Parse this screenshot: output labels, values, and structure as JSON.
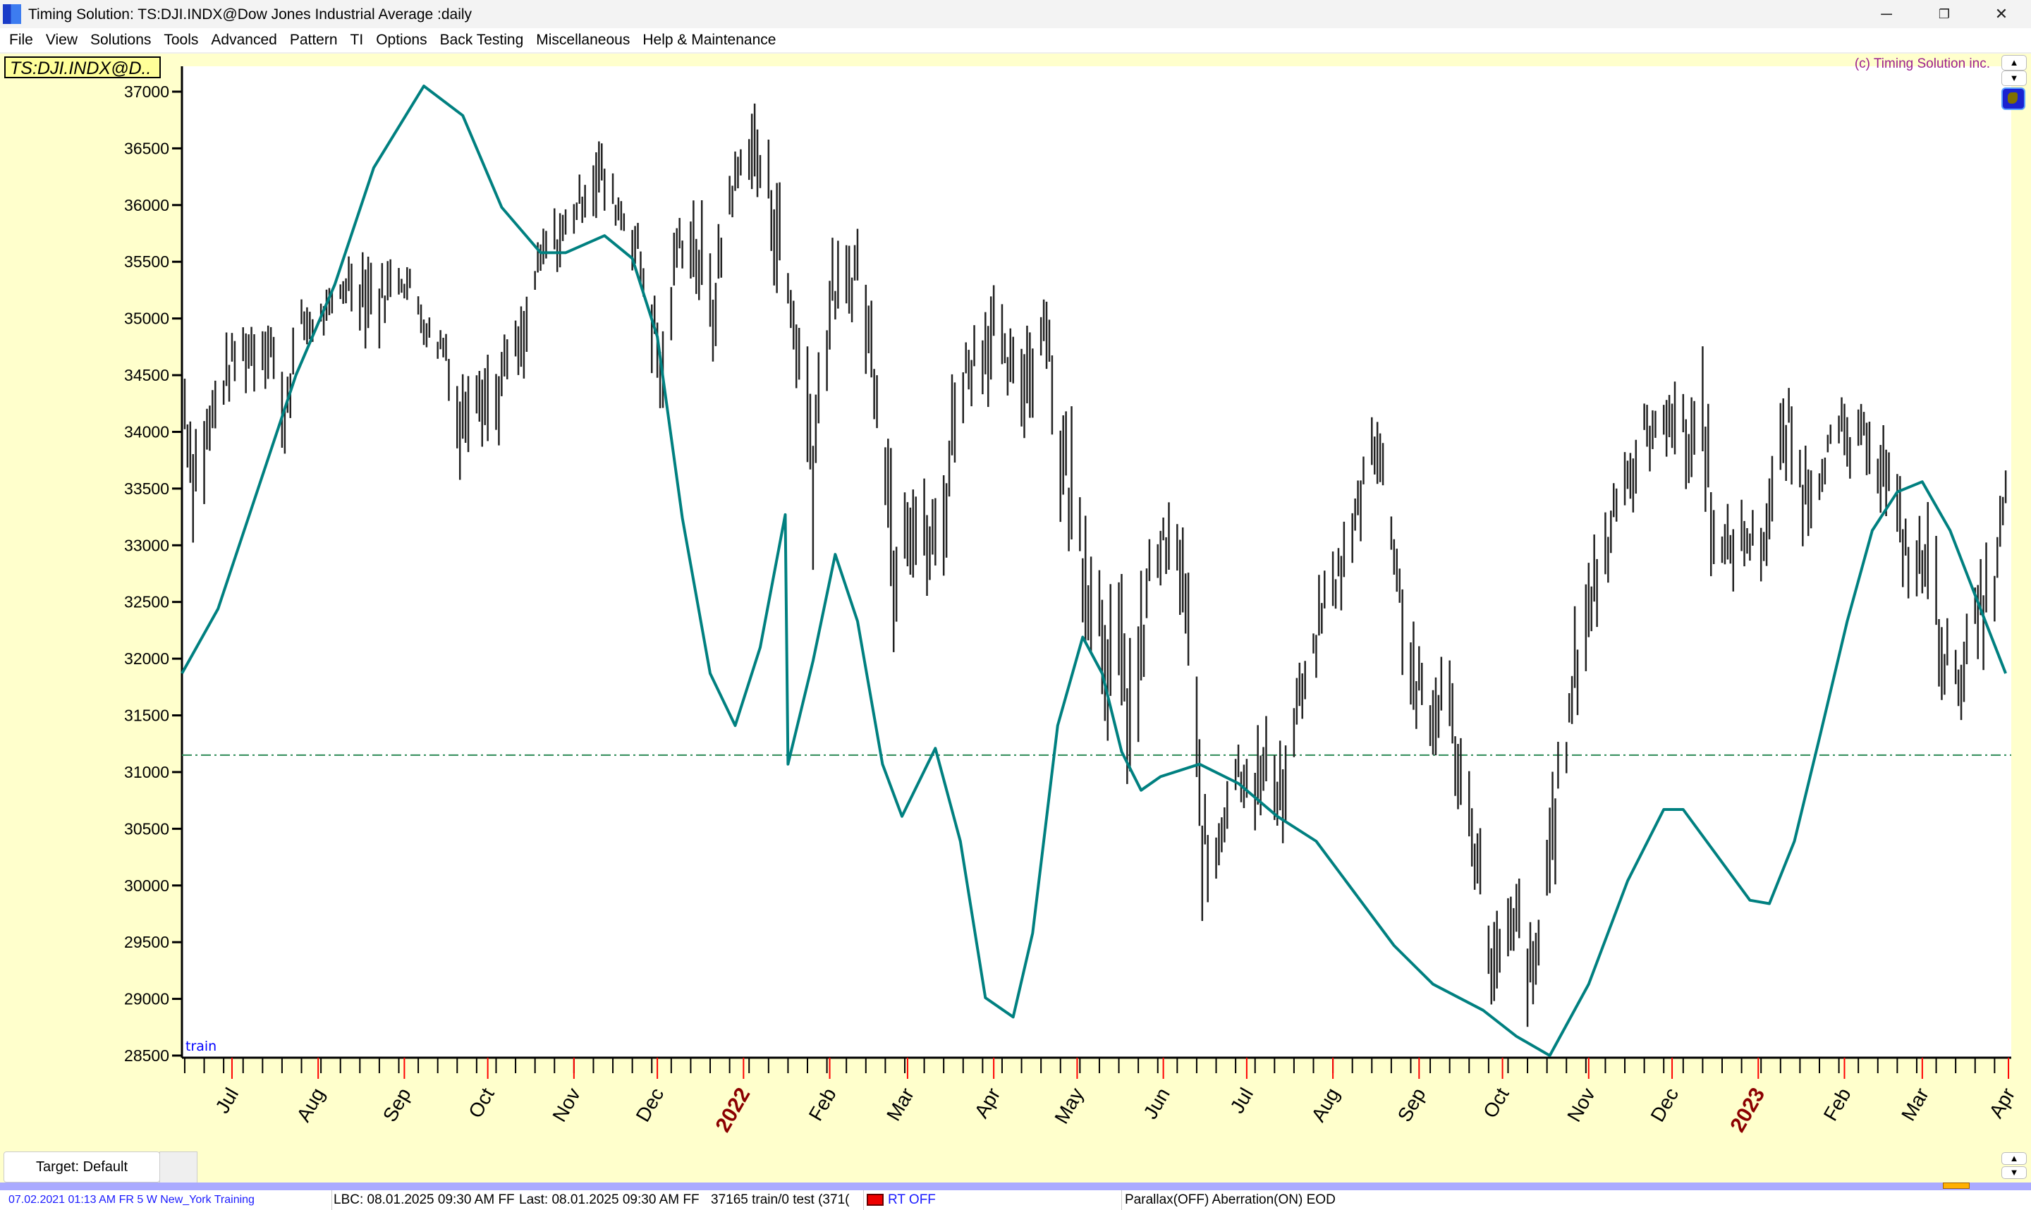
{
  "window": {
    "title": "Timing Solution:  TS:DJI.INDX@Dow Jones Industrial Average  :daily",
    "icon": "timing-solution-logo",
    "controls": {
      "minimize": "─",
      "restore": "❐",
      "close": "✕"
    }
  },
  "menu": [
    "File",
    "View",
    "Solutions",
    "Tools",
    "Advanced",
    "Pattern",
    "TI",
    "Options",
    "Back Testing",
    "Miscellaneous",
    "Help & Maintenance"
  ],
  "chart_header": {
    "symbol": "TS:DJI.INDX@D..",
    "copyright": "(c) Timing Solution inc.",
    "scroll_up": "▲",
    "scroll_down": "▼"
  },
  "chart_data": {
    "type": "bar",
    "subtype": "high-low price bars with projection line",
    "ylim": [
      28500,
      37000
    ],
    "y_ticks": [
      "28500",
      "29000",
      "29500",
      "30000",
      "30500",
      "31000",
      "31500",
      "32000",
      "32500",
      "33000",
      "33500",
      "34000",
      "34500",
      "35000",
      "35500",
      "36000",
      "36500",
      "37000"
    ],
    "xlim": [
      "2021-06-13",
      "2023-04-02"
    ],
    "x_labels": [
      {
        "date": "2021-07-01",
        "label": "Jul",
        "year": false
      },
      {
        "date": "2021-08-01",
        "label": "Aug",
        "year": false
      },
      {
        "date": "2021-09-01",
        "label": "Sep",
        "year": false
      },
      {
        "date": "2021-10-01",
        "label": "Oct",
        "year": false
      },
      {
        "date": "2021-11-01",
        "label": "Nov",
        "year": false
      },
      {
        "date": "2021-12-01",
        "label": "Dec",
        "year": false
      },
      {
        "date": "2022-01-01",
        "label": "2022",
        "year": true
      },
      {
        "date": "2022-02-01",
        "label": "Feb",
        "year": false
      },
      {
        "date": "2022-03-01",
        "label": "Mar",
        "year": false
      },
      {
        "date": "2022-04-01",
        "label": "Apr",
        "year": false
      },
      {
        "date": "2022-05-01",
        "label": "May",
        "year": false
      },
      {
        "date": "2022-06-01",
        "label": "Jun",
        "year": false
      },
      {
        "date": "2022-07-01",
        "label": "Jul",
        "year": false
      },
      {
        "date": "2022-08-01",
        "label": "Aug",
        "year": false
      },
      {
        "date": "2022-09-01",
        "label": "Sep",
        "year": false
      },
      {
        "date": "2022-10-01",
        "label": "Oct",
        "year": false
      },
      {
        "date": "2022-11-01",
        "label": "Nov",
        "year": false
      },
      {
        "date": "2022-12-01",
        "label": "Dec",
        "year": false
      },
      {
        "date": "2023-01-01",
        "label": "2023",
        "year": true
      },
      {
        "date": "2023-02-01",
        "label": "Feb",
        "year": false
      },
      {
        "date": "2023-03-01",
        "label": "Mar",
        "year": false
      },
      {
        "date": "2023-04-01",
        "label": "Apr",
        "year": false
      }
    ],
    "region_label": "train",
    "reference_line": 31150,
    "price_bars_low_high": [
      [
        "2021-06-14",
        34000,
        34500
      ],
      [
        "2021-06-17",
        33300,
        34000
      ],
      [
        "2021-06-21",
        33500,
        34200
      ],
      [
        "2021-06-27",
        34200,
        34600
      ],
      [
        "2021-07-03",
        34500,
        34900
      ],
      [
        "2021-07-10",
        34500,
        35000
      ],
      [
        "2021-07-15",
        34600,
        35000
      ],
      [
        "2021-07-19",
        33700,
        34400
      ],
      [
        "2021-07-25",
        34800,
        35100
      ],
      [
        "2021-07-31",
        34800,
        35100
      ],
      [
        "2021-08-06",
        35000,
        35200
      ],
      [
        "2021-08-12",
        35200,
        35500
      ],
      [
        "2021-08-17",
        35000,
        35600
      ],
      [
        "2021-08-23",
        34900,
        35400
      ],
      [
        "2021-08-29",
        35300,
        35500
      ],
      [
        "2021-09-04",
        35100,
        35400
      ],
      [
        "2021-09-10",
        34700,
        35000
      ],
      [
        "2021-09-16",
        34600,
        34900
      ],
      [
        "2021-09-21",
        33700,
        34300
      ],
      [
        "2021-09-26",
        34300,
        34900
      ],
      [
        "2021-10-03",
        33800,
        34500
      ],
      [
        "2021-10-08",
        34500,
        34800
      ],
      [
        "2021-10-14",
        34500,
        35000
      ],
      [
        "2021-10-18",
        35200,
        35500
      ],
      [
        "2021-10-22",
        35500,
        35800
      ],
      [
        "2021-10-27",
        35500,
        35900
      ],
      [
        "2021-11-01",
        35800,
        36100
      ],
      [
        "2021-11-06",
        36000,
        36300
      ],
      [
        "2021-11-10",
        36000,
        36580
      ],
      [
        "2021-11-15",
        35900,
        36200
      ],
      [
        "2021-11-20",
        35700,
        36000
      ],
      [
        "2021-11-24",
        35400,
        35800
      ],
      [
        "2021-11-29",
        34700,
        35300
      ],
      [
        "2021-12-03",
        34000,
        34800
      ],
      [
        "2021-12-08",
        35500,
        35800
      ],
      [
        "2021-12-13",
        35500,
        36000
      ],
      [
        "2021-12-17",
        35000,
        35800
      ],
      [
        "2021-12-21",
        34700,
        35300
      ],
      [
        "2021-12-26",
        35800,
        36200
      ],
      [
        "2021-12-31",
        36200,
        36500
      ],
      [
        "2022-01-03",
        36300,
        36900
      ],
      [
        "2022-01-08",
        36000,
        36500
      ],
      [
        "2022-01-12",
        35500,
        36400
      ],
      [
        "2022-01-17",
        35000,
        35500
      ],
      [
        "2022-01-21",
        34300,
        35000
      ],
      [
        "2022-01-26",
        33200,
        34500
      ],
      [
        "2022-01-29",
        34000,
        35000
      ],
      [
        "2022-02-02",
        35000,
        35500
      ],
      [
        "2022-02-07",
        35000,
        35500
      ],
      [
        "2022-02-11",
        35200,
        35800
      ],
      [
        "2022-02-15",
        34500,
        35200
      ],
      [
        "2022-02-20",
        33900,
        34500
      ],
      [
        "2022-02-24",
        32300,
        33500
      ],
      [
        "2022-02-28",
        33000,
        33800
      ],
      [
        "2022-03-04",
        32800,
        33500
      ],
      [
        "2022-03-09",
        32600,
        33300
      ],
      [
        "2022-03-14",
        32800,
        33600
      ],
      [
        "2022-03-18",
        33900,
        34600
      ],
      [
        "2022-03-22",
        34300,
        34800
      ],
      [
        "2022-03-27",
        34500,
        35000
      ],
      [
        "2022-04-01",
        34500,
        35300
      ],
      [
        "2022-04-05",
        34400,
        34800
      ],
      [
        "2022-04-10",
        34100,
        34700
      ],
      [
        "2022-04-14",
        34200,
        35000
      ],
      [
        "2022-04-20",
        34800,
        35300
      ],
      [
        "2022-04-24",
        33500,
        34200
      ],
      [
        "2022-04-28",
        33000,
        34100
      ],
      [
        "2022-05-03",
        32500,
        33400
      ],
      [
        "2022-05-08",
        32000,
        33000
      ],
      [
        "2022-05-13",
        31500,
        32500
      ],
      [
        "2022-05-17",
        31200,
        32400
      ],
      [
        "2022-05-22",
        30900,
        32000
      ],
      [
        "2022-05-27",
        32500,
        33000
      ],
      [
        "2022-06-01",
        32800,
        33200
      ],
      [
        "2022-06-05",
        32600,
        33200
      ],
      [
        "2022-06-08",
        32400,
        33100
      ],
      [
        "2022-06-12",
        31100,
        32000
      ],
      [
        "2022-06-15",
        30000,
        30800
      ],
      [
        "2022-06-18",
        29700,
        30400
      ],
      [
        "2022-06-22",
        30300,
        30800
      ],
      [
        "2022-06-26",
        30800,
        31300
      ],
      [
        "2022-07-01",
        30800,
        31200
      ],
      [
        "2022-07-05",
        30600,
        31200
      ],
      [
        "2022-07-10",
        30700,
        31400
      ],
      [
        "2022-07-15",
        30500,
        31100
      ],
      [
        "2022-07-19",
        31400,
        31800
      ],
      [
        "2022-07-24",
        31700,
        32000
      ],
      [
        "2022-07-28",
        32200,
        32700
      ],
      [
        "2022-08-02",
        32500,
        32900
      ],
      [
        "2022-08-07",
        32700,
        33200
      ],
      [
        "2022-08-11",
        33200,
        33700
      ],
      [
        "2022-08-15",
        33800,
        34250
      ],
      [
        "2022-08-18",
        33500,
        34000
      ],
      [
        "2022-08-23",
        32800,
        33300
      ],
      [
        "2022-08-27",
        31800,
        32500
      ],
      [
        "2022-09-01",
        31300,
        32000
      ],
      [
        "2022-09-06",
        31100,
        31700
      ],
      [
        "2022-09-10",
        31600,
        32200
      ],
      [
        "2022-09-15",
        30800,
        31300
      ],
      [
        "2022-09-20",
        30300,
        30800
      ],
      [
        "2022-09-24",
        29500,
        30200
      ],
      [
        "2022-09-28",
        28900,
        29600
      ],
      [
        "2022-10-02",
        29100,
        29700
      ],
      [
        "2022-10-07",
        29400,
        30000
      ],
      [
        "2022-10-12",
        28700,
        29400
      ],
      [
        "2022-10-16",
        29700,
        30300
      ],
      [
        "2022-10-20",
        30300,
        31000
      ],
      [
        "2022-10-25",
        31200,
        31700
      ],
      [
        "2022-10-29",
        31800,
        32700
      ],
      [
        "2022-11-03",
        32300,
        33000
      ],
      [
        "2022-11-08",
        32700,
        33300
      ],
      [
        "2022-11-12",
        33500,
        33900
      ],
      [
        "2022-11-17",
        33400,
        33800
      ],
      [
        "2022-11-21",
        33800,
        34200
      ],
      [
        "2022-11-26",
        33800,
        34100
      ],
      [
        "2022-11-30",
        34000,
        34500
      ],
      [
        "2022-12-06",
        33500,
        34200
      ],
      [
        "2022-12-12",
        33800,
        34600
      ],
      [
        "2022-12-15",
        33000,
        33800
      ],
      [
        "2022-12-19",
        32700,
        33100
      ],
      [
        "2022-12-24",
        32800,
        33300
      ],
      [
        "2022-12-29",
        32900,
        33200
      ],
      [
        "2023-01-03",
        32800,
        33300
      ],
      [
        "2023-01-08",
        33500,
        34000
      ],
      [
        "2023-01-12",
        33700,
        34300
      ],
      [
        "2023-01-17",
        33200,
        33800
      ],
      [
        "2023-01-21",
        33300,
        33700
      ],
      [
        "2023-01-26",
        33700,
        34000
      ],
      [
        "2023-01-31",
        33800,
        34200
      ],
      [
        "2023-02-04",
        33600,
        34000
      ],
      [
        "2023-02-09",
        33800,
        34200
      ],
      [
        "2023-02-13",
        33500,
        34100
      ],
      [
        "2023-02-17",
        33300,
        33800
      ],
      [
        "2023-02-22",
        32800,
        33300
      ],
      [
        "2023-02-26",
        32500,
        33000
      ],
      [
        "2023-03-03",
        32500,
        33300
      ],
      [
        "2023-03-08",
        31800,
        32500
      ],
      [
        "2023-03-13",
        31500,
        32000
      ],
      [
        "2023-03-17",
        31800,
        32300
      ],
      [
        "2023-03-22",
        32100,
        32700
      ],
      [
        "2023-03-27",
        32400,
        33000
      ],
      [
        "2023-03-31",
        33300,
        33600
      ]
    ],
    "projection_line": [
      [
        "2021-06-13",
        31870
      ],
      [
        "2021-06-26",
        32440
      ],
      [
        "2021-07-10",
        33470
      ],
      [
        "2021-07-24",
        34500
      ],
      [
        "2021-08-07",
        35300
      ],
      [
        "2021-08-21",
        36330
      ],
      [
        "2021-09-08",
        37050
      ],
      [
        "2021-09-22",
        36790
      ],
      [
        "2021-10-06",
        35980
      ],
      [
        "2021-10-20",
        35580
      ],
      [
        "2021-10-29",
        35580
      ],
      [
        "2021-11-12",
        35730
      ],
      [
        "2021-11-22",
        35530
      ],
      [
        "2021-12-01",
        34840
      ],
      [
        "2021-12-10",
        33240
      ],
      [
        "2021-12-20",
        31870
      ],
      [
        "2021-12-29",
        31410
      ],
      [
        "2022-01-07",
        32100
      ],
      [
        "2022-01-16",
        33270
      ],
      [
        "2022-01-17",
        31070
      ],
      [
        "2022-01-26",
        31980
      ],
      [
        "2022-02-03",
        32920
      ],
      [
        "2022-02-11",
        32330
      ],
      [
        "2022-02-20",
        31070
      ],
      [
        "2022-02-27",
        30610
      ],
      [
        "2022-03-11",
        31210
      ],
      [
        "2022-03-20",
        30390
      ],
      [
        "2022-03-29",
        29010
      ],
      [
        "2022-04-08",
        28840
      ],
      [
        "2022-04-15",
        29580
      ],
      [
        "2022-04-24",
        31410
      ],
      [
        "2022-05-03",
        32190
      ],
      [
        "2022-05-10",
        31870
      ],
      [
        "2022-05-17",
        31180
      ],
      [
        "2022-05-24",
        30840
      ],
      [
        "2022-05-31",
        30960
      ],
      [
        "2022-06-14",
        31070
      ],
      [
        "2022-06-28",
        30900
      ],
      [
        "2022-07-12",
        30610
      ],
      [
        "2022-07-26",
        30390
      ],
      [
        "2022-08-09",
        29930
      ],
      [
        "2022-08-23",
        29470
      ],
      [
        "2022-09-06",
        29130
      ],
      [
        "2022-09-24",
        28900
      ],
      [
        "2022-10-06",
        28670
      ],
      [
        "2022-10-18",
        28500
      ],
      [
        "2022-11-01",
        29130
      ],
      [
        "2022-11-15",
        30040
      ],
      [
        "2022-11-28",
        30670
      ],
      [
        "2022-12-05",
        30670
      ],
      [
        "2022-12-17",
        30270
      ],
      [
        "2022-12-29",
        29870
      ],
      [
        "2023-01-05",
        29840
      ],
      [
        "2023-01-14",
        30390
      ],
      [
        "2023-01-23",
        31300
      ],
      [
        "2023-02-02",
        32330
      ],
      [
        "2023-02-11",
        33130
      ],
      [
        "2023-02-20",
        33470
      ],
      [
        "2023-03-01",
        33560
      ],
      [
        "2023-03-11",
        33130
      ],
      [
        "2023-03-20",
        32560
      ],
      [
        "2023-03-31",
        31870
      ]
    ],
    "colors": {
      "bars": "#222222",
      "projection": "#008080",
      "reference": "#2e8b57",
      "month_tick": "#ff0000",
      "year_label": "#8b0000",
      "region_label": "#0000ff"
    }
  },
  "bottom": {
    "target_button": "Target: Default",
    "scroll_up": "▲",
    "scroll_down": "▼"
  },
  "status": {
    "datetime": "07.02.2021  01:13 AM FR  5 W New_York  Training",
    "lbc": "LBC: 08.01.2025  09:30 AM FF",
    "last": "Last: 08.01.2025  09:30 AM FF",
    "train_info": "37165 train/0 test (371(",
    "rt": "RT OFF",
    "flags": "Parallax(OFF) Aberration(ON) EOD"
  }
}
